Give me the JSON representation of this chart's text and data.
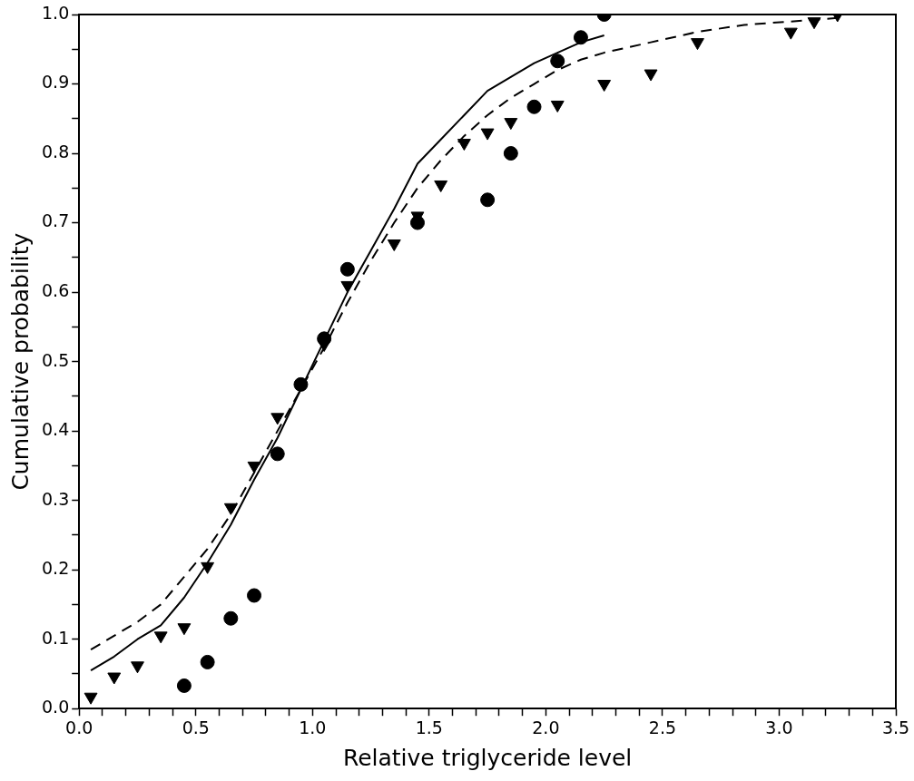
{
  "chart_data": {
    "type": "scatter",
    "xlabel": "Relative triglyceride level",
    "ylabel": "Cumulative probability",
    "xlim": [
      0,
      3.5
    ],
    "ylim": [
      0,
      1
    ],
    "xticks": [
      {
        "value": 0,
        "label": "0.0"
      },
      {
        "value": 0.1,
        "label": null
      },
      {
        "value": 0.2,
        "label": null
      },
      {
        "value": 0.3,
        "label": null
      },
      {
        "value": 0.4,
        "label": null
      },
      {
        "value": 0.5,
        "label": "0.5"
      },
      {
        "value": 0.6,
        "label": null
      },
      {
        "value": 0.7,
        "label": null
      },
      {
        "value": 0.8,
        "label": null
      },
      {
        "value": 0.9,
        "label": null
      },
      {
        "value": 1,
        "label": "1.0"
      },
      {
        "value": 1.1,
        "label": null
      },
      {
        "value": 1.2,
        "label": null
      },
      {
        "value": 1.3,
        "label": null
      },
      {
        "value": 1.4,
        "label": null
      },
      {
        "value": 1.5,
        "label": "1.5"
      },
      {
        "value": 1.6,
        "label": null
      },
      {
        "value": 1.7,
        "label": null
      },
      {
        "value": 1.8,
        "label": null
      },
      {
        "value": 1.9,
        "label": null
      },
      {
        "value": 2,
        "label": "2.0"
      },
      {
        "value": 2.1,
        "label": null
      },
      {
        "value": 2.2,
        "label": null
      },
      {
        "value": 2.3,
        "label": null
      },
      {
        "value": 2.4,
        "label": null
      },
      {
        "value": 2.5,
        "label": "2.5"
      },
      {
        "value": 2.6,
        "label": null
      },
      {
        "value": 2.7,
        "label": null
      },
      {
        "value": 2.8,
        "label": null
      },
      {
        "value": 2.9,
        "label": null
      },
      {
        "value": 3,
        "label": "3.0"
      },
      {
        "value": 3.1,
        "label": null
      },
      {
        "value": 3.2,
        "label": null
      },
      {
        "value": 3.3,
        "label": null
      },
      {
        "value": 3.4,
        "label": null
      },
      {
        "value": 3.5,
        "label": "3.5"
      }
    ],
    "yticks": [
      {
        "value": 0,
        "label": "0.0"
      },
      {
        "value": 0.05,
        "label": null
      },
      {
        "value": 0.1,
        "label": "0.1"
      },
      {
        "value": 0.15,
        "label": null
      },
      {
        "value": 0.2,
        "label": "0.2"
      },
      {
        "value": 0.25,
        "label": null
      },
      {
        "value": 0.3,
        "label": "0.3"
      },
      {
        "value": 0.35,
        "label": null
      },
      {
        "value": 0.4,
        "label": "0.4"
      },
      {
        "value": 0.45,
        "label": null
      },
      {
        "value": 0.5,
        "label": "0.5"
      },
      {
        "value": 0.55,
        "label": null
      },
      {
        "value": 0.6,
        "label": "0.6"
      },
      {
        "value": 0.65,
        "label": null
      },
      {
        "value": 0.7,
        "label": "0.7"
      },
      {
        "value": 0.75,
        "label": null
      },
      {
        "value": 0.8,
        "label": "0.8"
      },
      {
        "value": 0.85,
        "label": null
      },
      {
        "value": 0.9,
        "label": "0.9"
      },
      {
        "value": 0.95,
        "label": null
      },
      {
        "value": 1,
        "label": "1.0"
      }
    ],
    "grid": false,
    "legend": false,
    "series": [
      {
        "marker": "circle",
        "color": "#000000",
        "x": [
          0.45,
          0.55,
          0.65,
          0.75,
          0.85,
          0.95,
          1.05,
          1.15,
          1.45,
          1.75,
          1.85,
          1.95,
          2.05,
          2.15,
          2.25
        ],
        "values": [
          0.033,
          0.067,
          0.13,
          0.163,
          0.367,
          0.467,
          0.533,
          0.633,
          0.7,
          0.733,
          0.8,
          0.867,
          0.933,
          0.967,
          1.0
        ]
      },
      {
        "marker": "triangle",
        "color": "#000000",
        "x": [
          0.05,
          0.15,
          0.25,
          0.35,
          0.45,
          0.55,
          0.65,
          0.75,
          0.85,
          1.05,
          1.15,
          1.35,
          1.45,
          1.55,
          1.65,
          1.75,
          1.85,
          2.05,
          2.25,
          2.45,
          2.65,
          3.05,
          3.15,
          3.25
        ],
        "values": [
          0.017,
          0.046,
          0.062,
          0.105,
          0.117,
          0.205,
          0.29,
          0.35,
          0.42,
          0.525,
          0.61,
          0.67,
          0.71,
          0.755,
          0.815,
          0.83,
          0.845,
          0.87,
          0.9,
          0.915,
          0.96,
          0.975,
          0.99,
          1.0
        ]
      },
      {
        "type": "line",
        "line_style": "solid",
        "marker": "none",
        "color": "#000000",
        "x": [
          0.05,
          0.15,
          0.25,
          0.35,
          0.45,
          0.55,
          0.65,
          0.75,
          0.85,
          0.95,
          1.05,
          1.15,
          1.25,
          1.35,
          1.45,
          1.55,
          1.65,
          1.75,
          1.85,
          1.95,
          2.05,
          2.15,
          2.25
        ],
        "values": [
          0.055,
          0.075,
          0.1,
          0.12,
          0.16,
          0.21,
          0.265,
          0.33,
          0.39,
          0.46,
          0.53,
          0.6,
          0.66,
          0.72,
          0.785,
          0.82,
          0.855,
          0.89,
          0.91,
          0.93,
          0.945,
          0.96,
          0.97
        ]
      },
      {
        "type": "line",
        "line_style": "dashed",
        "marker": "none",
        "color": "#000000",
        "x": [
          0.05,
          0.15,
          0.25,
          0.35,
          0.45,
          0.55,
          0.65,
          0.75,
          0.85,
          0.95,
          1.05,
          1.15,
          1.25,
          1.35,
          1.45,
          1.55,
          1.65,
          1.75,
          1.85,
          1.95,
          2.05,
          2.15,
          2.25,
          2.45,
          2.65,
          2.85,
          3.05,
          3.25
        ],
        "values": [
          0.085,
          0.105,
          0.125,
          0.15,
          0.19,
          0.23,
          0.28,
          0.34,
          0.4,
          0.46,
          0.52,
          0.585,
          0.645,
          0.7,
          0.75,
          0.79,
          0.825,
          0.855,
          0.88,
          0.9,
          0.92,
          0.935,
          0.945,
          0.96,
          0.975,
          0.985,
          0.99,
          0.995
        ]
      }
    ]
  }
}
